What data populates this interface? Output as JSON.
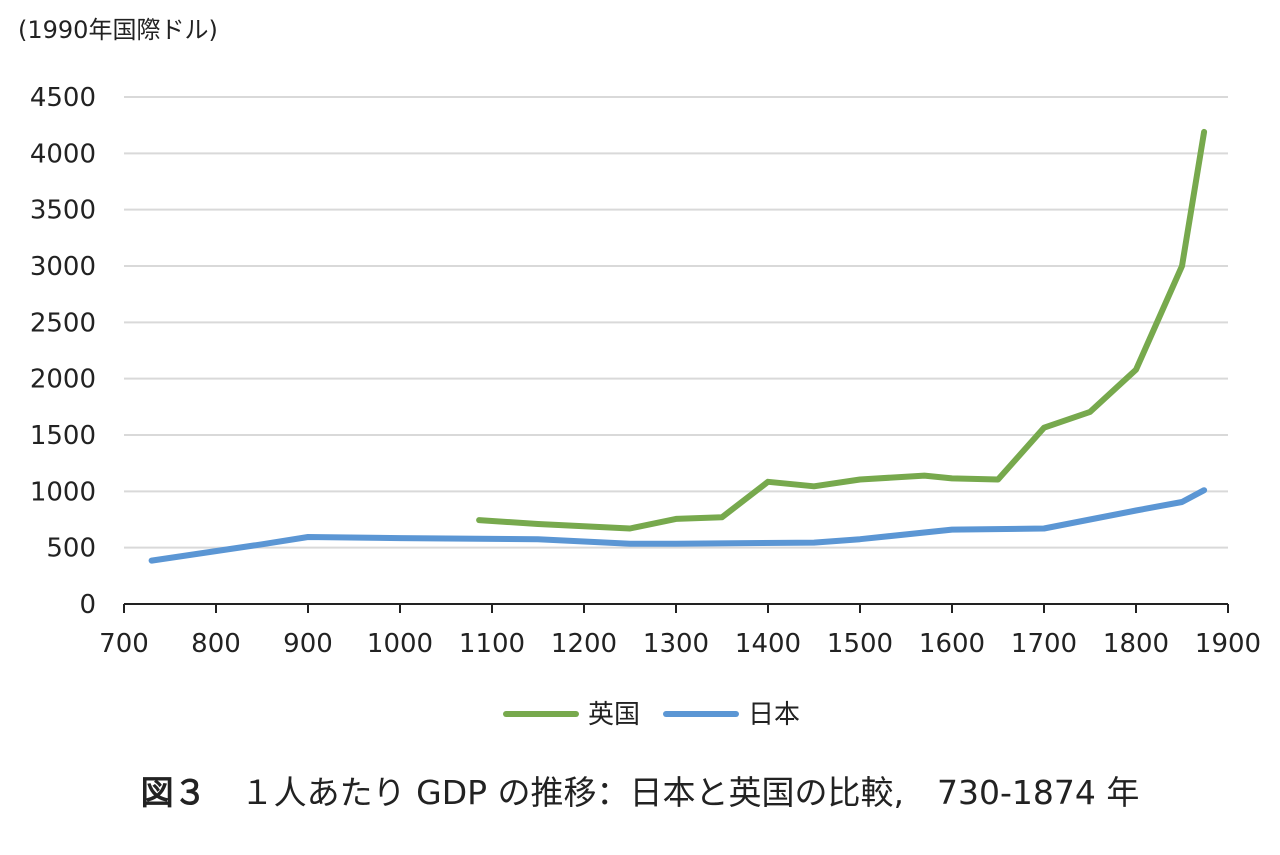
{
  "chart_data": {
    "type": "line",
    "title": "",
    "ylabel": "(1990年国際ドル)",
    "xlabel": "",
    "xlim": [
      700,
      1900
    ],
    "ylim": [
      0,
      4500
    ],
    "xticks": [
      700,
      800,
      900,
      1000,
      1100,
      1200,
      1300,
      1400,
      1500,
      1600,
      1700,
      1800,
      1900
    ],
    "yticks": [
      0,
      500,
      1000,
      1500,
      2000,
      2500,
      3000,
      3500,
      4000,
      4500
    ],
    "grid": true,
    "legend_position": "bottom",
    "series": [
      {
        "name": "英国",
        "color": "#77a94d",
        "x": [
          1086,
          1150,
          1250,
          1300,
          1350,
          1400,
          1450,
          1500,
          1570,
          1600,
          1650,
          1700,
          1750,
          1800,
          1850,
          1874
        ],
        "y": [
          745,
          710,
          670,
          755,
          770,
          1085,
          1045,
          1105,
          1140,
          1115,
          1105,
          1565,
          1705,
          2080,
          3000,
          4190
        ]
      },
      {
        "name": "日本",
        "color": "#5b96d4",
        "x": [
          730,
          850,
          900,
          1000,
          1150,
          1250,
          1300,
          1450,
          1500,
          1600,
          1700,
          1750,
          1800,
          1850,
          1874
        ],
        "y": [
          385,
          530,
          595,
          585,
          575,
          535,
          535,
          545,
          575,
          660,
          670,
          750,
          830,
          905,
          1010
        ]
      }
    ]
  },
  "caption": {
    "figure_number": "図３",
    "text": "１人あたり GDP の推移：日本と英国の比較,　730-1874 年"
  }
}
